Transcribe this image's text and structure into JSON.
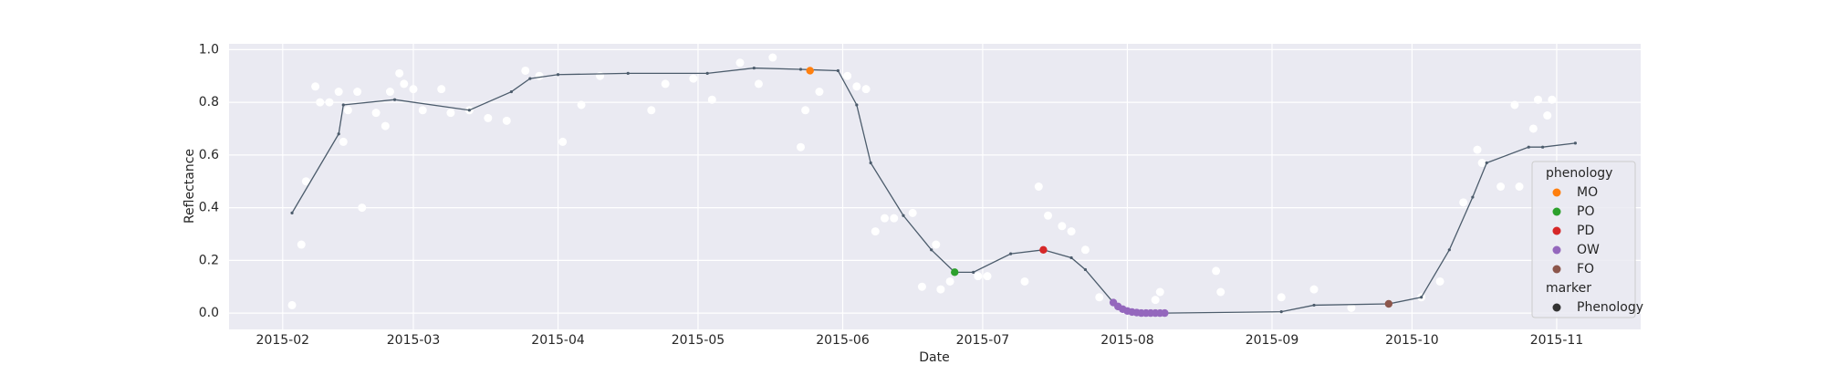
{
  "chart_data": {
    "type": "line",
    "x_label": "Date",
    "y_label": "Reflectance",
    "xlim": [
      20.5,
      323
    ],
    "ylim": [
      -0.062,
      1.022
    ],
    "xticks": [
      {
        "value": 32,
        "label": "2015-02"
      },
      {
        "value": 60,
        "label": "2015-03"
      },
      {
        "value": 91,
        "label": "2015-04"
      },
      {
        "value": 121,
        "label": "2015-05"
      },
      {
        "value": 152,
        "label": "2015-06"
      },
      {
        "value": 182,
        "label": "2015-07"
      },
      {
        "value": 213,
        "label": "2015-08"
      },
      {
        "value": 244,
        "label": "2015-09"
      },
      {
        "value": 274,
        "label": "2015-10"
      },
      {
        "value": 305,
        "label": "2015-11"
      }
    ],
    "yticks": [
      {
        "value": 0,
        "label": "0.0"
      },
      {
        "value": 0.2,
        "label": "0.2"
      },
      {
        "value": 0.4,
        "label": "0.4"
      },
      {
        "value": 0.6,
        "label": "0.6"
      },
      {
        "value": 0.8,
        "label": "0.8"
      },
      {
        "value": 1,
        "label": "1.0"
      }
    ],
    "grid": true,
    "background": "#eaeaf2",
    "grid_color": "#ffffff",
    "series": [
      {
        "type": "scatter",
        "color": "#ffffff",
        "x": [
          34,
          36,
          37,
          39,
          40,
          42,
          44,
          45,
          46,
          48,
          49,
          52,
          54,
          55,
          57,
          58,
          60,
          62,
          66,
          68,
          72,
          76,
          80,
          84,
          87,
          92,
          96,
          100,
          111,
          114,
          120,
          124,
          130,
          134,
          137,
          143,
          144,
          147,
          153,
          155,
          157,
          159,
          161,
          163,
          167,
          169,
          172,
          173,
          175,
          181,
          183,
          191,
          194,
          196,
          199,
          201,
          204,
          207,
          219,
          220,
          232,
          233,
          246,
          253,
          261,
          276,
          280,
          285,
          288,
          289,
          293,
          296,
          297,
          300,
          301,
          303,
          304
        ],
        "values": [
          0.03,
          0.26,
          0.5,
          0.86,
          0.8,
          0.8,
          0.84,
          0.65,
          0.77,
          0.84,
          0.4,
          0.76,
          0.71,
          0.84,
          0.91,
          0.87,
          0.85,
          0.77,
          0.85,
          0.76,
          0.77,
          0.74,
          0.73,
          0.92,
          0.9,
          0.65,
          0.79,
          0.9,
          0.77,
          0.87,
          0.89,
          0.81,
          0.95,
          0.87,
          0.97,
          0.63,
          0.77,
          0.84,
          0.9,
          0.86,
          0.85,
          0.31,
          0.36,
          0.36,
          0.38,
          0.1,
          0.26,
          0.09,
          0.12,
          0.14,
          0.14,
          0.12,
          0.48,
          0.37,
          0.33,
          0.31,
          0.24,
          0.06,
          0.05,
          0.08,
          0.16,
          0.08,
          0.06,
          0.09,
          0.02,
          0.06,
          0.12,
          0.42,
          0.62,
          0.57,
          0.48,
          0.79,
          0.48,
          0.7,
          0.81,
          0.75,
          0.81
        ]
      },
      {
        "type": "line",
        "color": "#4c5c6c",
        "x": [
          34,
          44,
          45,
          56,
          72,
          81,
          85,
          91,
          106,
          123,
          133,
          143,
          151,
          155,
          158,
          165,
          171,
          176,
          180,
          188,
          195,
          201,
          204,
          210,
          214,
          221,
          246,
          253,
          269,
          276,
          282,
          287,
          290,
          299,
          302,
          309
        ],
        "values": [
          0.38,
          0.68,
          0.79,
          0.81,
          0.77,
          0.84,
          0.89,
          0.905,
          0.91,
          0.91,
          0.93,
          0.925,
          0.92,
          0.79,
          0.57,
          0.37,
          0.24,
          0.155,
          0.155,
          0.225,
          0.24,
          0.21,
          0.165,
          0.04,
          0.005,
          0,
          0.005,
          0.03,
          0.035,
          0.06,
          0.24,
          0.44,
          0.57,
          0.63,
          0.63,
          0.645
        ]
      }
    ],
    "phenology": {
      "title": "phenology",
      "marker_title": "marker",
      "marker_label": "Phenology",
      "marker_color": "#333333",
      "series": [
        {
          "name": "MO",
          "color": "#ff7f0e",
          "x": [
            145
          ],
          "values": [
            0.92
          ]
        },
        {
          "name": "PO",
          "color": "#2ca02c",
          "x": [
            176
          ],
          "values": [
            0.155
          ]
        },
        {
          "name": "PD",
          "color": "#d62728",
          "x": [
            195
          ],
          "values": [
            0.24
          ]
        },
        {
          "name": "OW",
          "color": "#9467bd",
          "x": [
            210,
            211,
            212,
            213,
            214,
            215,
            216,
            217,
            218,
            219,
            220,
            221
          ],
          "values": [
            0.04,
            0.025,
            0.015,
            0.008,
            0.004,
            0.002,
            0,
            0,
            0,
            0,
            0,
            0
          ]
        },
        {
          "name": "FO",
          "color": "#8c564b",
          "x": [
            269
          ],
          "values": [
            0.035
          ]
        }
      ]
    }
  }
}
